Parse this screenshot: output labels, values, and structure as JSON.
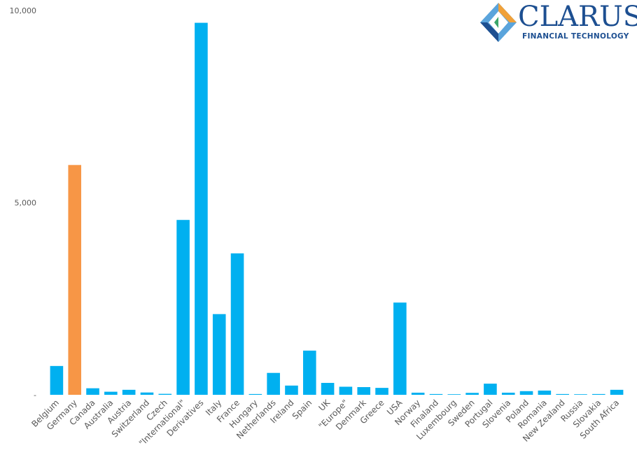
{
  "brand": {
    "name": "CLARUS",
    "tagline": "FINANCIAL TECHNOLOGY",
    "colors": {
      "primary": "#1d4f91",
      "orange": "#f0a13a",
      "green": "#3aa66a",
      "light_blue": "#5aa4dc"
    }
  },
  "chart_data": {
    "type": "bar",
    "title": "",
    "xlabel": "",
    "ylabel": "",
    "ylim": [
      0,
      10000
    ],
    "yticks": [
      0,
      5000,
      10000
    ],
    "ytick_labels": [
      "-",
      "5,000",
      "10,000"
    ],
    "grid": false,
    "bar_color": "#00b0f0",
    "highlight_color": "#f79646",
    "highlight_category": "Germany",
    "categories": [
      "Belgium",
      "Germany",
      "Canada",
      "Australia",
      "Austria",
      "Switzerland",
      "Czech",
      "\"International\"",
      "Derivatives",
      "Italy",
      "France",
      "Hungary",
      "Netherlands",
      "Ireland",
      "Spain",
      "UK",
      "\"Europe\"",
      "Denmark",
      "Greece",
      "USA",
      "Norway",
      "Finaland",
      "Luxembourg",
      "Sweden",
      "Portugal",
      "Slovenia",
      "Poland",
      "Romania",
      "New Zealand",
      "Russia",
      "Slovakia",
      "South Africa"
    ],
    "values": [
      750,
      5980,
      170,
      80,
      130,
      60,
      25,
      4550,
      9680,
      2100,
      3680,
      20,
      570,
      240,
      1150,
      310,
      210,
      200,
      180,
      2400,
      55,
      20,
      15,
      50,
      290,
      55,
      95,
      110,
      20,
      15,
      20,
      130
    ]
  }
}
